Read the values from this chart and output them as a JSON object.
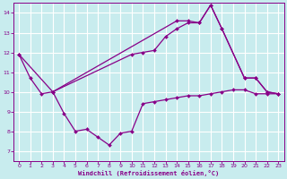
{
  "xlabel": "Windchill (Refroidissement éolien,°C)",
  "xlim": [
    -0.5,
    23.5
  ],
  "ylim": [
    6.5,
    14.5
  ],
  "xticks": [
    0,
    1,
    2,
    3,
    4,
    5,
    6,
    7,
    8,
    9,
    10,
    11,
    12,
    13,
    14,
    15,
    16,
    17,
    18,
    19,
    20,
    21,
    22,
    23
  ],
  "yticks": [
    7,
    8,
    9,
    10,
    11,
    12,
    13,
    14
  ],
  "bg_color": "#c8ecee",
  "grid_color": "#ffffff",
  "line_color": "#880088",
  "line1_x": [
    0,
    1,
    2,
    3,
    14,
    15,
    16,
    17,
    18,
    20,
    21,
    22,
    23
  ],
  "line1_y": [
    11.9,
    10.7,
    9.9,
    10.0,
    13.6,
    13.6,
    13.5,
    14.4,
    13.2,
    10.7,
    10.7,
    10.0,
    9.9
  ],
  "line2_x": [
    0,
    3,
    4,
    5,
    6,
    7,
    8,
    9,
    10,
    11,
    12,
    13,
    14,
    15,
    16,
    17,
    18,
    19,
    20,
    21,
    22,
    23
  ],
  "line2_y": [
    11.9,
    10.0,
    8.9,
    8.0,
    8.1,
    7.7,
    7.3,
    7.9,
    8.0,
    9.4,
    9.5,
    9.6,
    9.7,
    9.8,
    9.8,
    9.9,
    10.0,
    10.1,
    10.1,
    9.9,
    9.9,
    9.9
  ],
  "line3_x": [
    3,
    10,
    11,
    12,
    13,
    14,
    15,
    16,
    17,
    18,
    20,
    21,
    22,
    23
  ],
  "line3_y": [
    10.0,
    11.9,
    12.0,
    12.1,
    12.8,
    13.2,
    13.5,
    13.5,
    14.4,
    13.2,
    10.7,
    10.7,
    10.0,
    9.9
  ]
}
